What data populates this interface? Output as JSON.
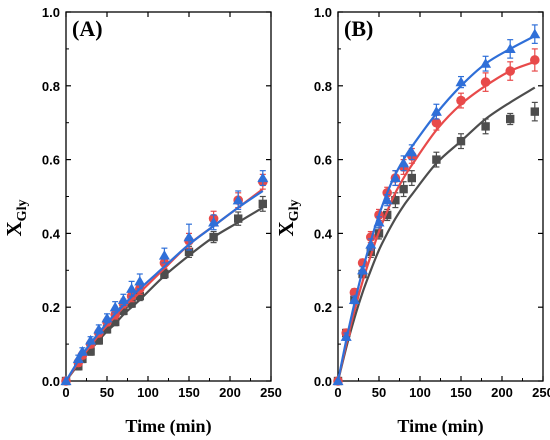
{
  "chart_data": [
    {
      "type": "scatter",
      "panel_label": "(A)",
      "xlabel": "Time (min)",
      "ylabel_main": "X",
      "ylabel_sub": "Gly",
      "xlim": [
        0,
        250
      ],
      "ylim": [
        0.0,
        1.0
      ],
      "xticks": [
        "0",
        "50",
        "100",
        "150",
        "200",
        "250"
      ],
      "yticks": [
        "0.0",
        "0.2",
        "0.4",
        "0.6",
        "0.8",
        "1.0"
      ],
      "grid": false,
      "series": [
        {
          "marker": "square",
          "color": "#4d4d4d",
          "x": [
            0,
            15,
            20,
            30,
            40,
            50,
            60,
            70,
            80,
            90,
            120,
            150,
            180,
            210,
            240
          ],
          "y": [
            0.0,
            0.04,
            0.06,
            0.08,
            0.11,
            0.14,
            0.16,
            0.19,
            0.21,
            0.23,
            0.29,
            0.35,
            0.39,
            0.44,
            0.48
          ],
          "err": [
            0,
            0.01,
            0.01,
            0.01,
            0.01,
            0.01,
            0.01,
            0.01,
            0.01,
            0.012,
            0.012,
            0.015,
            0.015,
            0.018,
            0.02
          ],
          "fit_y": [
            0.0,
            0.045,
            0.06,
            0.085,
            0.11,
            0.135,
            0.155,
            0.18,
            0.2,
            0.22,
            0.285,
            0.34,
            0.39,
            0.43,
            0.47
          ]
        },
        {
          "marker": "circle",
          "color": "#e84a4a",
          "x": [
            0,
            15,
            20,
            30,
            40,
            50,
            60,
            70,
            80,
            90,
            120,
            150,
            180,
            210,
            240
          ],
          "y": [
            0.0,
            0.05,
            0.07,
            0.1,
            0.13,
            0.16,
            0.18,
            0.21,
            0.23,
            0.25,
            0.32,
            0.38,
            0.44,
            0.49,
            0.54
          ],
          "err": [
            0,
            0.01,
            0.01,
            0.01,
            0.01,
            0.01,
            0.012,
            0.012,
            0.015,
            0.015,
            0.015,
            0.02,
            0.02,
            0.02,
            0.02
          ],
          "fit_y": [
            0.0,
            0.05,
            0.068,
            0.095,
            0.125,
            0.15,
            0.175,
            0.2,
            0.22,
            0.24,
            0.305,
            0.37,
            0.42,
            0.47,
            0.52
          ]
        },
        {
          "marker": "triangle",
          "color": "#2f6fd8",
          "x": [
            0,
            15,
            20,
            30,
            40,
            50,
            60,
            70,
            80,
            90,
            120,
            150,
            180,
            210,
            240
          ],
          "y": [
            0.0,
            0.06,
            0.08,
            0.11,
            0.14,
            0.17,
            0.2,
            0.22,
            0.25,
            0.27,
            0.34,
            0.39,
            0.43,
            0.49,
            0.55
          ],
          "err": [
            0,
            0.01,
            0.01,
            0.01,
            0.012,
            0.012,
            0.015,
            0.015,
            0.02,
            0.02,
            0.02,
            0.035,
            0.02,
            0.025,
            0.02
          ],
          "fit_y": [
            0.0,
            0.055,
            0.072,
            0.102,
            0.13,
            0.157,
            0.182,
            0.205,
            0.228,
            0.25,
            0.31,
            0.37,
            0.42,
            0.47,
            0.515
          ]
        }
      ]
    },
    {
      "type": "scatter",
      "panel_label": "(B)",
      "xlabel": "Time (min)",
      "ylabel_main": "X",
      "ylabel_sub": "Gly",
      "xlim": [
        0,
        250
      ],
      "ylim": [
        0.0,
        1.0
      ],
      "xticks": [
        "0",
        "50",
        "100",
        "150",
        "200",
        "250"
      ],
      "yticks": [
        "0.0",
        "0.2",
        "0.4",
        "0.6",
        "0.8",
        "1.0"
      ],
      "grid": false,
      "series": [
        {
          "marker": "square",
          "color": "#4d4d4d",
          "x": [
            0,
            10,
            20,
            30,
            40,
            50,
            60,
            70,
            80,
            90,
            120,
            150,
            180,
            210,
            240
          ],
          "y": [
            0.0,
            0.13,
            0.22,
            0.29,
            0.35,
            0.4,
            0.45,
            0.49,
            0.52,
            0.55,
            0.6,
            0.65,
            0.69,
            0.71,
            0.73
          ],
          "err": [
            0,
            0.01,
            0.01,
            0.01,
            0.015,
            0.015,
            0.015,
            0.02,
            0.02,
            0.02,
            0.02,
            0.02,
            0.02,
            0.015,
            0.025
          ],
          "fit_y": [
            0.0,
            0.09,
            0.17,
            0.24,
            0.3,
            0.355,
            0.4,
            0.44,
            0.475,
            0.505,
            0.59,
            0.65,
            0.71,
            0.755,
            0.795
          ]
        },
        {
          "marker": "circle",
          "color": "#e84a4a",
          "x": [
            0,
            10,
            20,
            30,
            40,
            50,
            60,
            70,
            80,
            90,
            120,
            150,
            180,
            210,
            240
          ],
          "y": [
            0.0,
            0.13,
            0.24,
            0.32,
            0.39,
            0.45,
            0.51,
            0.55,
            0.58,
            0.61,
            0.7,
            0.76,
            0.81,
            0.84,
            0.87
          ],
          "err": [
            0,
            0.01,
            0.01,
            0.01,
            0.015,
            0.015,
            0.015,
            0.02,
            0.02,
            0.02,
            0.02,
            0.02,
            0.025,
            0.025,
            0.03
          ],
          "fit_y": [
            0.0,
            0.1,
            0.19,
            0.27,
            0.34,
            0.405,
            0.46,
            0.51,
            0.55,
            0.585,
            0.68,
            0.75,
            0.8,
            0.84,
            0.865
          ]
        },
        {
          "marker": "triangle",
          "color": "#2f6fd8",
          "x": [
            0,
            10,
            20,
            30,
            40,
            50,
            60,
            70,
            80,
            90,
            120,
            150,
            180,
            210,
            240
          ],
          "y": [
            0.0,
            0.12,
            0.22,
            0.3,
            0.37,
            0.43,
            0.49,
            0.55,
            0.59,
            0.62,
            0.73,
            0.81,
            0.86,
            0.9,
            0.94
          ],
          "err": [
            0,
            0.01,
            0.01,
            0.01,
            0.015,
            0.015,
            0.015,
            0.02,
            0.02,
            0.02,
            0.02,
            0.015,
            0.02,
            0.025,
            0.025
          ],
          "fit_y": [
            0.0,
            0.11,
            0.21,
            0.3,
            0.38,
            0.45,
            0.51,
            0.56,
            0.6,
            0.635,
            0.725,
            0.8,
            0.86,
            0.9,
            0.935
          ]
        }
      ]
    }
  ]
}
